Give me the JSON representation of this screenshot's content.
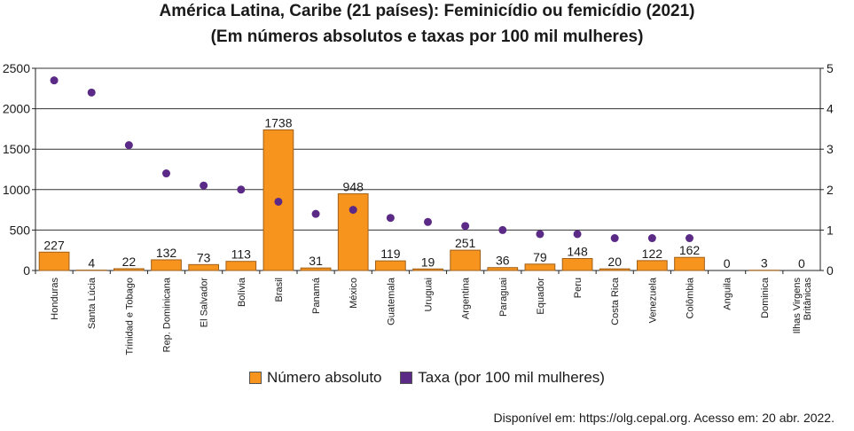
{
  "title": "América Latina, Caribe (21 países): Feminicídio ou femicídio (2021)",
  "subtitle": "(Em números absolutos e taxas por 100 mil mulheres)",
  "source": "Disponível em: https://olg.cepal.org. Acesso em: 20 abr. 2022.",
  "colors": {
    "bar": "#f7941d",
    "bar_edge": "#a0601a",
    "dot": "#5b2a86"
  },
  "chart_data": {
    "type": "bar",
    "title": "América Latina, Caribe (21 países): Feminicídio ou femicídio (2021)",
    "subtitle": "(Em números absolutos e taxas por 100 mil mulheres)",
    "categories": [
      "Honduras",
      "Santa Lúcia",
      "Trinidad e Tobago",
      "Rep. Dominicana",
      "El Salvador",
      "Bolívia",
      "Brasil",
      "Panamá",
      "México",
      "Guatemala",
      "Uruguai",
      "Argentina",
      "Paraguai",
      "Equador",
      "Peru",
      "Costa Rica",
      "Venezuela",
      "Colômbia",
      "Anguila",
      "Dominica",
      "Ilhas Virgens Britânicas"
    ],
    "series": [
      {
        "name": "Número absoluto",
        "type": "bar",
        "axis": "left",
        "values": [
          227,
          4,
          22,
          132,
          73,
          113,
          1738,
          31,
          948,
          119,
          19,
          251,
          36,
          79,
          148,
          20,
          122,
          162,
          0,
          3,
          0
        ],
        "labels": [
          "227",
          "4",
          "22",
          "132",
          "73",
          "113",
          "1738",
          "31",
          "948",
          "119",
          "19",
          "251",
          "36",
          "79",
          "148",
          "20",
          "122",
          "162",
          "0",
          "3",
          "0"
        ]
      },
      {
        "name": "Taxa (por 100 mil mulheres)",
        "type": "scatter",
        "axis": "right",
        "values": [
          4.7,
          4.4,
          3.1,
          2.4,
          2.1,
          2.0,
          1.7,
          1.4,
          1.5,
          1.3,
          1.2,
          1.1,
          1.0,
          0.9,
          0.9,
          0.8,
          0.8,
          0.8,
          null,
          null,
          null
        ]
      }
    ],
    "y_left": {
      "ticks": [
        "0",
        "500",
        "1000",
        "1500",
        "2000",
        "2500"
      ],
      "lim": [
        0,
        2500
      ]
    },
    "y_right": {
      "ticks": [
        "0",
        "1",
        "2",
        "3",
        "4",
        "5"
      ],
      "lim": [
        0,
        5
      ]
    },
    "grid": true,
    "legend": "bottom-center"
  }
}
